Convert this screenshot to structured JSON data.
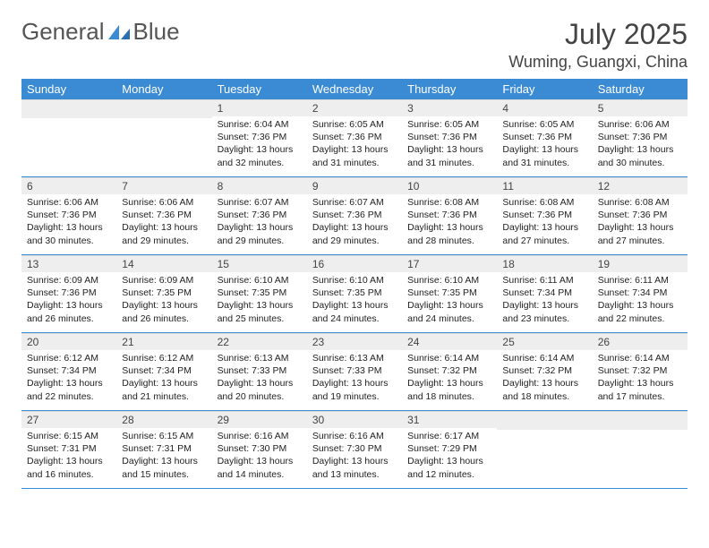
{
  "brand": {
    "word1": "General",
    "word2": "Blue"
  },
  "title": "July 2025",
  "location": "Wuming, Guangxi, China",
  "colors": {
    "header_bg": "#3b8bd4",
    "header_text": "#ffffff",
    "daynum_bg": "#eeeeee",
    "row_border": "#3b8bd4",
    "body_text": "#222222",
    "title_text": "#444444"
  },
  "weekdays": [
    "Sunday",
    "Monday",
    "Tuesday",
    "Wednesday",
    "Thursday",
    "Friday",
    "Saturday"
  ],
  "weeks": [
    [
      null,
      null,
      {
        "n": "1",
        "sunrise": "6:04 AM",
        "sunset": "7:36 PM",
        "daylight": "13 hours and 32 minutes."
      },
      {
        "n": "2",
        "sunrise": "6:05 AM",
        "sunset": "7:36 PM",
        "daylight": "13 hours and 31 minutes."
      },
      {
        "n": "3",
        "sunrise": "6:05 AM",
        "sunset": "7:36 PM",
        "daylight": "13 hours and 31 minutes."
      },
      {
        "n": "4",
        "sunrise": "6:05 AM",
        "sunset": "7:36 PM",
        "daylight": "13 hours and 31 minutes."
      },
      {
        "n": "5",
        "sunrise": "6:06 AM",
        "sunset": "7:36 PM",
        "daylight": "13 hours and 30 minutes."
      }
    ],
    [
      {
        "n": "6",
        "sunrise": "6:06 AM",
        "sunset": "7:36 PM",
        "daylight": "13 hours and 30 minutes."
      },
      {
        "n": "7",
        "sunrise": "6:06 AM",
        "sunset": "7:36 PM",
        "daylight": "13 hours and 29 minutes."
      },
      {
        "n": "8",
        "sunrise": "6:07 AM",
        "sunset": "7:36 PM",
        "daylight": "13 hours and 29 minutes."
      },
      {
        "n": "9",
        "sunrise": "6:07 AM",
        "sunset": "7:36 PM",
        "daylight": "13 hours and 29 minutes."
      },
      {
        "n": "10",
        "sunrise": "6:08 AM",
        "sunset": "7:36 PM",
        "daylight": "13 hours and 28 minutes."
      },
      {
        "n": "11",
        "sunrise": "6:08 AM",
        "sunset": "7:36 PM",
        "daylight": "13 hours and 27 minutes."
      },
      {
        "n": "12",
        "sunrise": "6:08 AM",
        "sunset": "7:36 PM",
        "daylight": "13 hours and 27 minutes."
      }
    ],
    [
      {
        "n": "13",
        "sunrise": "6:09 AM",
        "sunset": "7:36 PM",
        "daylight": "13 hours and 26 minutes."
      },
      {
        "n": "14",
        "sunrise": "6:09 AM",
        "sunset": "7:35 PM",
        "daylight": "13 hours and 26 minutes."
      },
      {
        "n": "15",
        "sunrise": "6:10 AM",
        "sunset": "7:35 PM",
        "daylight": "13 hours and 25 minutes."
      },
      {
        "n": "16",
        "sunrise": "6:10 AM",
        "sunset": "7:35 PM",
        "daylight": "13 hours and 24 minutes."
      },
      {
        "n": "17",
        "sunrise": "6:10 AM",
        "sunset": "7:35 PM",
        "daylight": "13 hours and 24 minutes."
      },
      {
        "n": "18",
        "sunrise": "6:11 AM",
        "sunset": "7:34 PM",
        "daylight": "13 hours and 23 minutes."
      },
      {
        "n": "19",
        "sunrise": "6:11 AM",
        "sunset": "7:34 PM",
        "daylight": "13 hours and 22 minutes."
      }
    ],
    [
      {
        "n": "20",
        "sunrise": "6:12 AM",
        "sunset": "7:34 PM",
        "daylight": "13 hours and 22 minutes."
      },
      {
        "n": "21",
        "sunrise": "6:12 AM",
        "sunset": "7:34 PM",
        "daylight": "13 hours and 21 minutes."
      },
      {
        "n": "22",
        "sunrise": "6:13 AM",
        "sunset": "7:33 PM",
        "daylight": "13 hours and 20 minutes."
      },
      {
        "n": "23",
        "sunrise": "6:13 AM",
        "sunset": "7:33 PM",
        "daylight": "13 hours and 19 minutes."
      },
      {
        "n": "24",
        "sunrise": "6:14 AM",
        "sunset": "7:32 PM",
        "daylight": "13 hours and 18 minutes."
      },
      {
        "n": "25",
        "sunrise": "6:14 AM",
        "sunset": "7:32 PM",
        "daylight": "13 hours and 18 minutes."
      },
      {
        "n": "26",
        "sunrise": "6:14 AM",
        "sunset": "7:32 PM",
        "daylight": "13 hours and 17 minutes."
      }
    ],
    [
      {
        "n": "27",
        "sunrise": "6:15 AM",
        "sunset": "7:31 PM",
        "daylight": "13 hours and 16 minutes."
      },
      {
        "n": "28",
        "sunrise": "6:15 AM",
        "sunset": "7:31 PM",
        "daylight": "13 hours and 15 minutes."
      },
      {
        "n": "29",
        "sunrise": "6:16 AM",
        "sunset": "7:30 PM",
        "daylight": "13 hours and 14 minutes."
      },
      {
        "n": "30",
        "sunrise": "6:16 AM",
        "sunset": "7:30 PM",
        "daylight": "13 hours and 13 minutes."
      },
      {
        "n": "31",
        "sunrise": "6:17 AM",
        "sunset": "7:29 PM",
        "daylight": "13 hours and 12 minutes."
      },
      null,
      null
    ]
  ],
  "labels": {
    "sunrise": "Sunrise:",
    "sunset": "Sunset:",
    "daylight": "Daylight:"
  }
}
